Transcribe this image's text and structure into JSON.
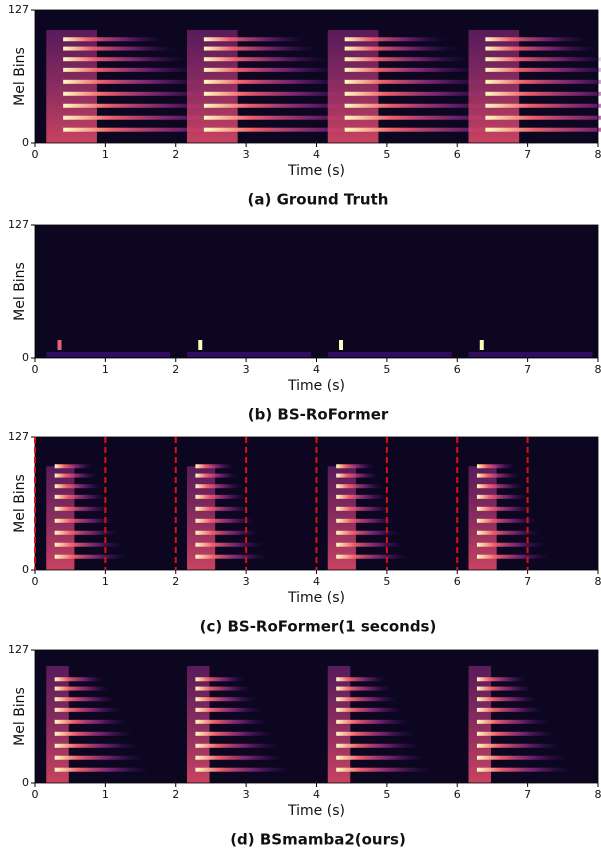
{
  "chart_data": [
    {
      "type": "spectrogram",
      "title": "(a) Ground Truth",
      "xlabel": "Time (s)",
      "ylabel": "Mel Bins",
      "xlim": [
        0,
        8
      ],
      "ylim": [
        0,
        127
      ],
      "xticks": [
        0,
        1,
        2,
        3,
        4,
        5,
        6,
        7,
        8
      ],
      "yticks": [
        0,
        127
      ]
    },
    {
      "type": "spectrogram",
      "title": "(b) BS-RoFormer",
      "xlabel": "Time (s)",
      "ylabel": "Mel Bins",
      "xlim": [
        0,
        8
      ],
      "ylim": [
        0,
        127
      ],
      "xticks": [
        0,
        1,
        2,
        3,
        4,
        5,
        6,
        7,
        8
      ],
      "yticks": [
        0,
        127
      ]
    },
    {
      "type": "spectrogram",
      "title": "(c) BS-RoFormer(1 seconds)",
      "xlabel": "Time (s)",
      "ylabel": "Mel Bins",
      "xlim": [
        0,
        8
      ],
      "ylim": [
        0,
        127
      ],
      "xticks": [
        0,
        1,
        2,
        3,
        4,
        5,
        6,
        7,
        8
      ],
      "yticks": [
        0,
        127
      ],
      "vlines": [
        0,
        1,
        2,
        3,
        4,
        5,
        6,
        7
      ],
      "vline_color": "#e01010"
    },
    {
      "type": "spectrogram",
      "title": "(d) BSmamba2(ours)",
      "xlabel": "Time (s)",
      "ylabel": "Mel Bins",
      "xlim": [
        0,
        8
      ],
      "ylim": [
        0,
        127
      ],
      "xticks": [
        0,
        1,
        2,
        3,
        4,
        5,
        6,
        7,
        8
      ],
      "yticks": [
        0,
        127
      ]
    }
  ]
}
